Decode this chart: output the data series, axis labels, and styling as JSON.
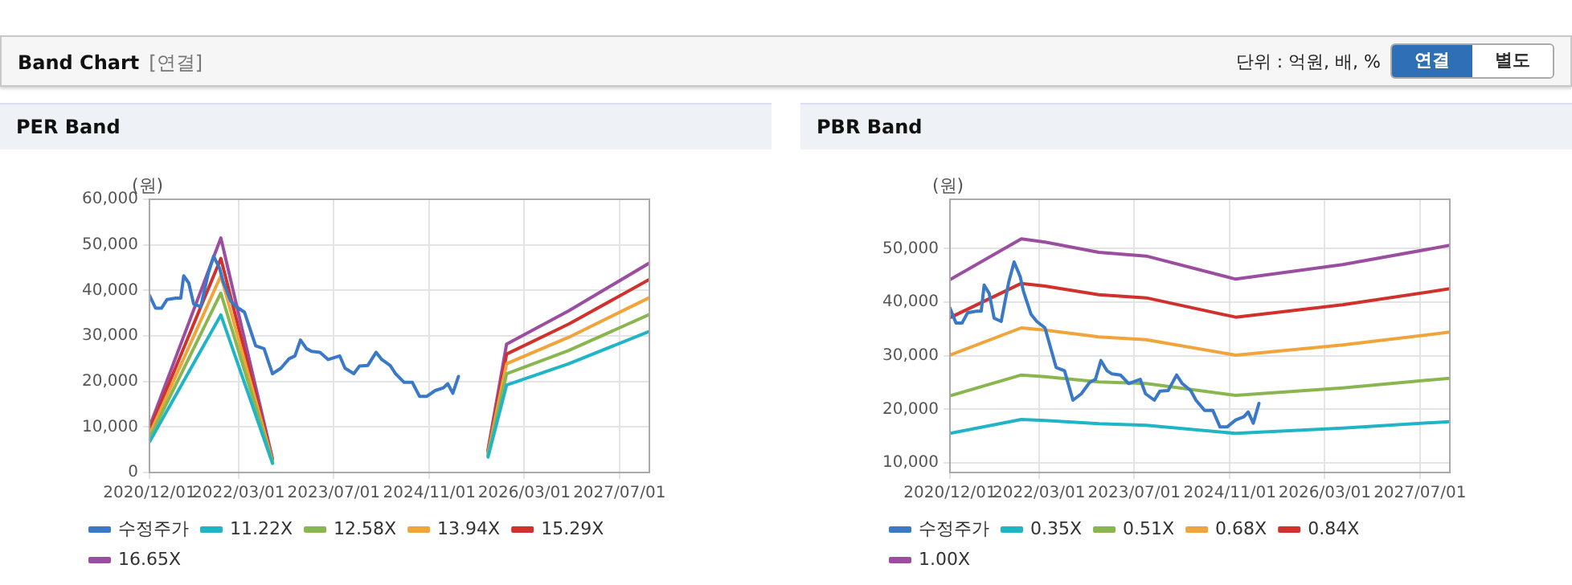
{
  "chart_data": [
    {
      "type": "other",
      "title": "Band Chart",
      "subtitle": "[연결]",
      "annotations": [
        "단위 : 억원, 배, %",
        "연결",
        "별도"
      ]
    },
    {
      "type": "line",
      "title": "PER Band",
      "ylabel": "(원)",
      "xlim": [
        "2020-12-01",
        "2027-12-01"
      ],
      "xticks": [
        {
          "value": "2020-12-01",
          "label": "2020/12/01"
        },
        {
          "value": "2022-03-01",
          "label": "2022/03/01"
        },
        {
          "value": "2023-07-01",
          "label": "2023/07/01"
        },
        {
          "value": "2024-11-01",
          "label": "2024/11/01"
        },
        {
          "value": "2026-03-01",
          "label": "2026/03/01"
        },
        {
          "value": "2027-07-01",
          "label": "2027/07/01"
        }
      ],
      "ylim": [
        0,
        60000
      ],
      "yticks": [
        0,
        {
          "value": 10000,
          "label": "10,000"
        },
        {
          "value": 20000,
          "label": "20,000"
        },
        {
          "value": 30000,
          "label": "30,000"
        },
        {
          "value": 40000,
          "label": "40,000"
        },
        {
          "value": 50000,
          "label": "50,000"
        },
        {
          "value": 60000,
          "label": "60,000"
        }
      ],
      "grid": true,
      "legend": "bottom",
      "series": [
        {
          "name": "수정주가",
          "color": "#3a78c8",
          "x": [
            "2020-12-01",
            "2021-01-01",
            "2021-02-01",
            "2021-03-01",
            "2021-04-15",
            "2021-05-10",
            "2021-05-25",
            "2021-06-20",
            "2021-07-15",
            "2021-08-20",
            "2021-09-28",
            "2021-10-25",
            "2021-11-25",
            "2021-12-12",
            "2022-01-20",
            "2022-02-18",
            "2022-04-01",
            "2022-05-28",
            "2022-07-10",
            "2022-08-22",
            "2022-10-04",
            "2022-11-15",
            "2022-12-15",
            "2023-01-12",
            "2023-02-12",
            "2023-03-10",
            "2023-04-22",
            "2023-06-03",
            "2023-08-01",
            "2023-08-28",
            "2023-10-12",
            "2023-11-10",
            "2023-12-22",
            "2024-02-03",
            "2024-03-03",
            "2024-04-15",
            "2024-05-12",
            "2024-06-25",
            "2024-08-06",
            "2024-09-12",
            "2024-10-18",
            "2024-12-01",
            "2025-01-12",
            "2025-02-03",
            "2025-03-01",
            "2025-03-30"
          ],
          "values": [
            38900,
            36100,
            36100,
            38000,
            38300,
            38300,
            43200,
            41600,
            37000,
            36400,
            43800,
            47500,
            44800,
            42000,
            37700,
            36400,
            35200,
            27800,
            27200,
            21700,
            22900,
            25000,
            25600,
            29100,
            27200,
            26600,
            26400,
            24800,
            25600,
            22900,
            21700,
            23400,
            23500,
            26400,
            24800,
            23500,
            21700,
            19800,
            19800,
            16700,
            16700,
            18000,
            18600,
            19500,
            17400,
            21100
          ]
        },
        {
          "name": "11.22X",
          "color": "#1fb5c6",
          "x": [
            "2020-12-01",
            "2021-12-01",
            "2022-08-22",
            "2024-01-01",
            "2025-08-28",
            "2025-12-01",
            "2026-10-15",
            "2027-12-01"
          ],
          "values": [
            6700,
            34600,
            2000,
            null,
            3400,
            19200,
            23900,
            31000
          ]
        },
        {
          "name": "12.58X",
          "color": "#8ab650",
          "x": [
            "2020-12-01",
            "2021-12-01",
            "2022-08-22",
            "2024-01-01",
            "2025-08-28",
            "2025-12-01",
            "2026-10-15",
            "2027-12-01"
          ],
          "values": [
            7500,
            39400,
            2300,
            null,
            3800,
            21700,
            26800,
            34700
          ]
        },
        {
          "name": "13.94X",
          "color": "#f0a43a",
          "x": [
            "2020-12-01",
            "2021-12-01",
            "2022-08-22",
            "2024-01-01",
            "2025-08-28",
            "2025-12-01",
            "2026-10-15",
            "2027-12-01"
          ],
          "values": [
            8300,
            43200,
            2500,
            null,
            4200,
            23900,
            29700,
            38400
          ]
        },
        {
          "name": "15.29X",
          "color": "#d0312d",
          "x": [
            "2020-12-01",
            "2021-12-01",
            "2022-08-22",
            "2024-01-01",
            "2025-08-28",
            "2025-12-01",
            "2026-10-15",
            "2027-12-01"
          ],
          "values": [
            9200,
            47000,
            2800,
            null,
            4600,
            26000,
            32600,
            42400
          ]
        },
        {
          "name": "16.65X",
          "color": "#9b4ea0",
          "x": [
            "2020-12-01",
            "2021-12-01",
            "2022-08-22",
            "2024-01-01",
            "2025-08-28",
            "2025-12-01",
            "2026-10-15",
            "2027-12-01"
          ],
          "values": [
            10000,
            51500,
            3000,
            null,
            5000,
            28200,
            35500,
            46000
          ]
        }
      ]
    },
    {
      "type": "line",
      "title": "PBR Band",
      "ylabel": "(원)",
      "xlim": [
        "2020-12-01",
        "2027-12-01"
      ],
      "xticks": [
        {
          "value": "2020-12-01",
          "label": "2020/12/01"
        },
        {
          "value": "2022-03-01",
          "label": "2022/03/01"
        },
        {
          "value": "2023-07-01",
          "label": "2023/07/01"
        },
        {
          "value": "2024-11-01",
          "label": "2024/11/01"
        },
        {
          "value": "2026-03-01",
          "label": "2026/03/01"
        },
        {
          "value": "2027-07-01",
          "label": "2027/07/01"
        }
      ],
      "ylim": [
        8200,
        59200
      ],
      "yticks": [
        {
          "value": 10000,
          "label": "10,000"
        },
        {
          "value": 20000,
          "label": "20,000"
        },
        {
          "value": 30000,
          "label": "30,000"
        },
        {
          "value": 40000,
          "label": "40,000"
        },
        {
          "value": 50000,
          "label": "50,000"
        }
      ],
      "grid": true,
      "legend": "bottom",
      "series": [
        {
          "name": "수정주가",
          "color": "#3a78c8",
          "x": [
            "2020-12-01",
            "2021-01-01",
            "2021-02-01",
            "2021-03-01",
            "2021-04-15",
            "2021-05-10",
            "2021-05-25",
            "2021-06-20",
            "2021-07-15",
            "2021-08-20",
            "2021-09-28",
            "2021-10-25",
            "2021-11-25",
            "2021-12-12",
            "2022-01-20",
            "2022-02-18",
            "2022-04-01",
            "2022-05-28",
            "2022-07-10",
            "2022-08-22",
            "2022-10-04",
            "2022-11-15",
            "2022-12-15",
            "2023-01-12",
            "2023-02-12",
            "2023-03-10",
            "2023-04-22",
            "2023-06-03",
            "2023-08-01",
            "2023-08-28",
            "2023-10-12",
            "2023-11-10",
            "2023-12-22",
            "2024-02-03",
            "2024-03-03",
            "2024-04-15",
            "2024-05-12",
            "2024-06-25",
            "2024-08-06",
            "2024-09-12",
            "2024-10-18",
            "2024-12-01",
            "2025-01-12",
            "2025-02-03",
            "2025-03-01",
            "2025-03-30"
          ],
          "values": [
            38900,
            36100,
            36100,
            38000,
            38300,
            38300,
            43200,
            41600,
            37000,
            36400,
            43800,
            47500,
            44800,
            42000,
            37700,
            36400,
            35200,
            27800,
            27200,
            21700,
            22900,
            25000,
            25600,
            29100,
            27200,
            26600,
            26400,
            24800,
            25600,
            22900,
            21700,
            23400,
            23500,
            26400,
            24800,
            23500,
            21700,
            19800,
            19800,
            16700,
            16700,
            18000,
            18600,
            19500,
            17400,
            21100
          ]
        },
        {
          "name": "0.35X",
          "color": "#1fb5c6",
          "x": [
            "2020-12-01",
            "2021-12-01",
            "2022-04-01",
            "2023-01-01",
            "2023-09-01",
            "2024-12-01",
            "2026-06-01",
            "2027-12-01"
          ],
          "values": [
            15500,
            18100,
            17900,
            17300,
            17000,
            15500,
            16500,
            17700
          ]
        },
        {
          "name": "0.51X",
          "color": "#8ab650",
          "x": [
            "2020-12-01",
            "2021-12-01",
            "2022-04-01",
            "2023-01-01",
            "2023-09-01",
            "2024-12-01",
            "2026-06-01",
            "2027-12-01"
          ],
          "values": [
            22500,
            26400,
            26100,
            25100,
            24800,
            22600,
            24000,
            25800
          ]
        },
        {
          "name": "0.68X",
          "color": "#f0a43a",
          "x": [
            "2020-12-01",
            "2021-12-01",
            "2022-04-01",
            "2023-01-01",
            "2023-09-01",
            "2024-12-01",
            "2026-06-01",
            "2027-12-01"
          ],
          "values": [
            30100,
            35200,
            34800,
            33500,
            33000,
            30100,
            32000,
            34400
          ]
        },
        {
          "name": "0.84X",
          "color": "#d0312d",
          "x": [
            "2020-12-01",
            "2021-12-01",
            "2022-04-01",
            "2023-01-01",
            "2023-09-01",
            "2024-12-01",
            "2026-06-01",
            "2027-12-01"
          ],
          "values": [
            37100,
            43500,
            43000,
            41400,
            40800,
            37200,
            39500,
            42500
          ]
        },
        {
          "name": "1.00X",
          "color": "#9b4ea0",
          "x": [
            "2020-12-01",
            "2021-12-01",
            "2022-04-01",
            "2023-01-01",
            "2023-09-01",
            "2024-12-01",
            "2026-06-01",
            "2027-12-01"
          ],
          "values": [
            44200,
            51800,
            51200,
            49300,
            48600,
            44300,
            47000,
            50600
          ]
        }
      ]
    }
  ]
}
